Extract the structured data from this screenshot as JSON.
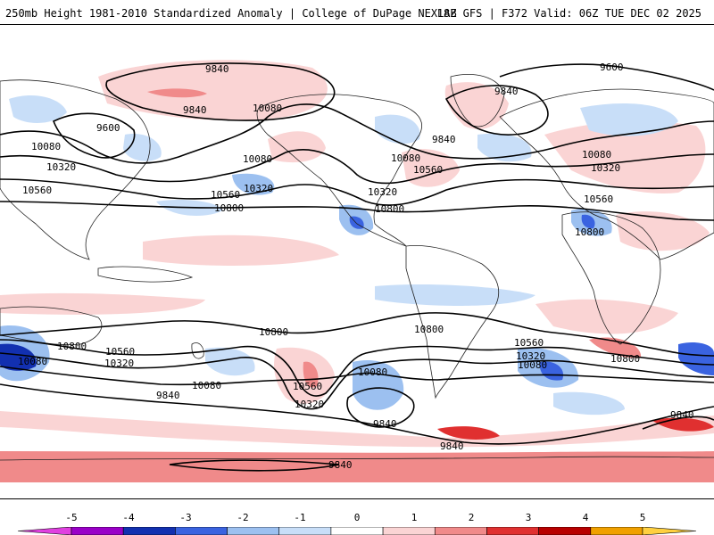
{
  "header": {
    "left_title": "250mb Height 1981-2010 Standardized Anomaly | College of DuPage NEXLAB",
    "right_title": "18Z GFS | F372 Valid: 06Z TUE DEC 02 2025"
  },
  "map": {
    "contour_labels": {
      "c9840_a": "9840",
      "c9840_b": "9840",
      "c9600_a": "9600",
      "c9840_c": "9840",
      "c10080_a": "10080",
      "c10080_b": "10080",
      "c10080_c": "10080",
      "c10080_d": "10080",
      "c10320_a": "10320",
      "c10320_b": "10320",
      "c10320_c": "10320",
      "c10560_a": "10560",
      "c10560_b": "10560",
      "c10560_c": "10560",
      "c10800_a": "10800",
      "c10800_b": "10800",
      "c10800_c": "10800",
      "c9600_b": "9600",
      "c9840_d": "9840",
      "c10080_e": "10080",
      "c10080_f": "10080",
      "c10320_d": "10320",
      "c10560_d": "10560",
      "c10800_d": "10800",
      "s10800_a": "10800",
      "s10800_b": "10800",
      "s10800_c": "10800",
      "s10800_d": "10800",
      "s10560_a": "10560",
      "s10560_b": "10560",
      "s10560_c": "10560",
      "s10320_a": "10320",
      "s10320_b": "10320",
      "s10320_c": "10320",
      "s10080_a": "10080",
      "s10080_b": "10080",
      "s10080_c": "10080",
      "s10080_d": "10080",
      "s9840_a": "9840",
      "s9840_b": "9840",
      "s9840_c": "9840",
      "s9840_d": "9840",
      "s9840_e": "9840"
    }
  },
  "colorbar": {
    "labels": [
      "-5",
      "-4",
      "-3",
      "-2",
      "-1",
      "0",
      "1",
      "2",
      "3",
      "4",
      "5"
    ],
    "colors": [
      "#e040e0",
      "#9a00c8",
      "#1230b0",
      "#3a63e0",
      "#9cc0f0",
      "#c8def8",
      "#ffffff",
      "#fad4d4",
      "#f08a8a",
      "#e03030",
      "#b80000",
      "#f0a000",
      "#ffd040"
    ]
  }
}
